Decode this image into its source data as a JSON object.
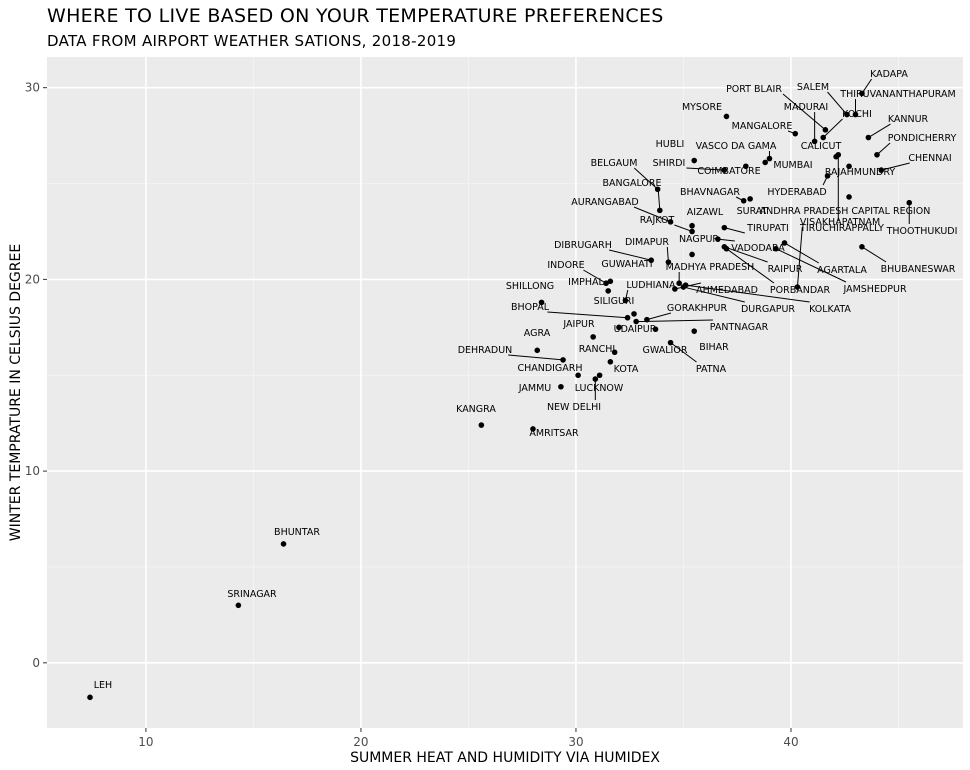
{
  "chart_data": {
    "type": "scatter",
    "title": "WHERE TO LIVE BASED ON YOUR TEMPERATURE PREFERENCES",
    "subtitle": "DATA FROM AIRPORT WEATHER SATIONS, 2018-2019",
    "xlabel": "SUMMER HEAT AND HUMIDITY VIA HUMIDEX",
    "ylabel": "WINTER TEMPRATURE IN CELSIUS DEGREE",
    "xlim": [
      5.4,
      48.0
    ],
    "ylim": [
      -3.4,
      31.6
    ],
    "x_ticks": [
      10,
      20,
      30,
      40
    ],
    "y_ticks": [
      0,
      10,
      20,
      30
    ],
    "grid": true,
    "legend": "none",
    "points": [
      {
        "label": "LEH",
        "x": 7.4,
        "y": -1.8
      },
      {
        "label": "SRINAGAR",
        "x": 14.3,
        "y": 3.0
      },
      {
        "label": "BHUNTAR",
        "x": 16.4,
        "y": 6.2
      },
      {
        "label": "KANGRA",
        "x": 25.6,
        "y": 12.4
      },
      {
        "label": "AMRITSAR",
        "x": 28.0,
        "y": 12.2
      },
      {
        "label": "JAMMU",
        "x": 29.3,
        "y": 14.4
      },
      {
        "label": "NEW DELHI",
        "x": 30.9,
        "y": 14.8
      },
      {
        "label": "LUCKNOW",
        "x": 31.1,
        "y": 15.0
      },
      {
        "label": "CHANDIGARH",
        "x": 30.1,
        "y": 15.0
      },
      {
        "label": "KOTA",
        "x": 31.6,
        "y": 15.7
      },
      {
        "label": "RANCHI",
        "x": 31.8,
        "y": 16.2
      },
      {
        "label": "DEHRADUN",
        "x": 29.4,
        "y": 15.8
      },
      {
        "label": "AGRA",
        "x": 28.2,
        "y": 16.3
      },
      {
        "label": "JAIPUR",
        "x": 30.8,
        "y": 17.0
      },
      {
        "label": "UDAIPUR",
        "x": 32.0,
        "y": 17.5
      },
      {
        "label": "GWALIOR",
        "x": 33.7,
        "y": 17.4
      },
      {
        "label": "BIHAR",
        "x": 35.5,
        "y": 17.3
      },
      {
        "label": "PATNA",
        "x": 34.4,
        "y": 16.7
      },
      {
        "label": "PANTNAGAR",
        "x": 32.8,
        "y": 17.8
      },
      {
        "label": "GORAKHPUR",
        "x": 33.3,
        "y": 17.9
      },
      {
        "label": "BHOPAL",
        "x": 32.4,
        "y": 18.0
      },
      {
        "label": "SILIGURI",
        "x": 32.7,
        "y": 18.2
      },
      {
        "label": "SHILLONG",
        "x": 28.4,
        "y": 18.8
      },
      {
        "label": "LUDHIANA",
        "x": 32.3,
        "y": 18.9
      },
      {
        "label": "IMPHAL",
        "x": 31.5,
        "y": 19.4
      },
      {
        "label": "INDORE",
        "x": 31.4,
        "y": 19.8
      },
      {
        "label": "GUWAHATI",
        "x": 31.6,
        "y": 19.9
      },
      {
        "label": "AHMEDABAD",
        "x": 34.6,
        "y": 19.5
      },
      {
        "label": "DURGAPUR",
        "x": 35.0,
        "y": 19.6
      },
      {
        "label": "MADHYA PRADESH",
        "x": 34.8,
        "y": 19.8
      },
      {
        "label": "KOLKATA",
        "x": 35.1,
        "y": 19.7
      },
      {
        "label": "DIBRUGARH",
        "x": 33.5,
        "y": 21.0
      },
      {
        "label": "DIMAPUR",
        "x": 34.3,
        "y": 20.9
      },
      {
        "label": "NAGPUR",
        "x": 35.4,
        "y": 21.3
      },
      {
        "label": "PORBANDAR",
        "x": 37.0,
        "y": 21.6
      },
      {
        "label": "RAIPUR",
        "x": 36.9,
        "y": 21.7
      },
      {
        "label": "VADODARA",
        "x": 36.6,
        "y": 22.1
      },
      {
        "label": "JAMSHEDPUR",
        "x": 39.3,
        "y": 21.6
      },
      {
        "label": "AGARTALA",
        "x": 39.7,
        "y": 21.9
      },
      {
        "label": "BHUBANESWAR",
        "x": 43.3,
        "y": 21.7
      },
      {
        "label": "VISAKHAPATNAM",
        "x": 40.3,
        "y": 19.6
      },
      {
        "label": "TIRUPATI",
        "x": 36.9,
        "y": 22.7
      },
      {
        "label": "RAJKOT",
        "x": 35.4,
        "y": 22.5
      },
      {
        "label": "AIZAWL",
        "x": 35.4,
        "y": 22.8
      },
      {
        "label": "AURANGABAD",
        "x": 34.4,
        "y": 23.0
      },
      {
        "label": "BANGALORE",
        "x": 33.9,
        "y": 23.6
      },
      {
        "label": "BHAVNAGAR",
        "x": 37.8,
        "y": 24.1
      },
      {
        "label": "SURAT",
        "x": 38.1,
        "y": 24.2
      },
      {
        "label": "HYDERABAD",
        "x": 41.7,
        "y": 25.4
      },
      {
        "label": "ANDHRA PRADESH CAPITAL REGION",
        "x": 42.7,
        "y": 24.3
      },
      {
        "label": "TIRUCHIRAPPALLY",
        "x": 42.2,
        "y": 26.5
      },
      {
        "label": "THOOTHUKUDI",
        "x": 45.5,
        "y": 24.0
      },
      {
        "label": "BELGAUM",
        "x": 33.8,
        "y": 24.7
      },
      {
        "label": "SHIRDI",
        "x": 36.9,
        "y": 25.7
      },
      {
        "label": "COIMBATORE",
        "x": 37.9,
        "y": 25.9
      },
      {
        "label": "MUMBAI",
        "x": 38.8,
        "y": 26.1
      },
      {
        "label": "RAJAHMUNDRY",
        "x": 42.7,
        "y": 25.9
      },
      {
        "label": "CHENNAI",
        "x": 44.2,
        "y": 25.7
      },
      {
        "label": "HUBLI",
        "x": 35.5,
        "y": 26.2
      },
      {
        "label": "VASCO DA GAMA",
        "x": 39.0,
        "y": 26.3
      },
      {
        "label": "CALICUT",
        "x": 42.1,
        "y": 26.4
      },
      {
        "label": "PONDICHERRY",
        "x": 44.0,
        "y": 26.5
      },
      {
        "label": "KANNUR",
        "x": 43.6,
        "y": 27.4
      },
      {
        "label": "MANGALORE",
        "x": 40.2,
        "y": 27.6
      },
      {
        "label": "KOCHI",
        "x": 41.5,
        "y": 27.4
      },
      {
        "label": "MYSORE",
        "x": 37.0,
        "y": 28.5
      },
      {
        "label": "MADURAI",
        "x": 41.1,
        "y": 27.2
      },
      {
        "label": "PORT BLAIR",
        "x": 41.6,
        "y": 27.8
      },
      {
        "label": "SALEM",
        "x": 42.6,
        "y": 28.6
      },
      {
        "label": "THIRUVANANTHAPURAM",
        "x": 43.0,
        "y": 28.6
      },
      {
        "label": "KADAPA",
        "x": 43.3,
        "y": 29.7
      }
    ]
  }
}
